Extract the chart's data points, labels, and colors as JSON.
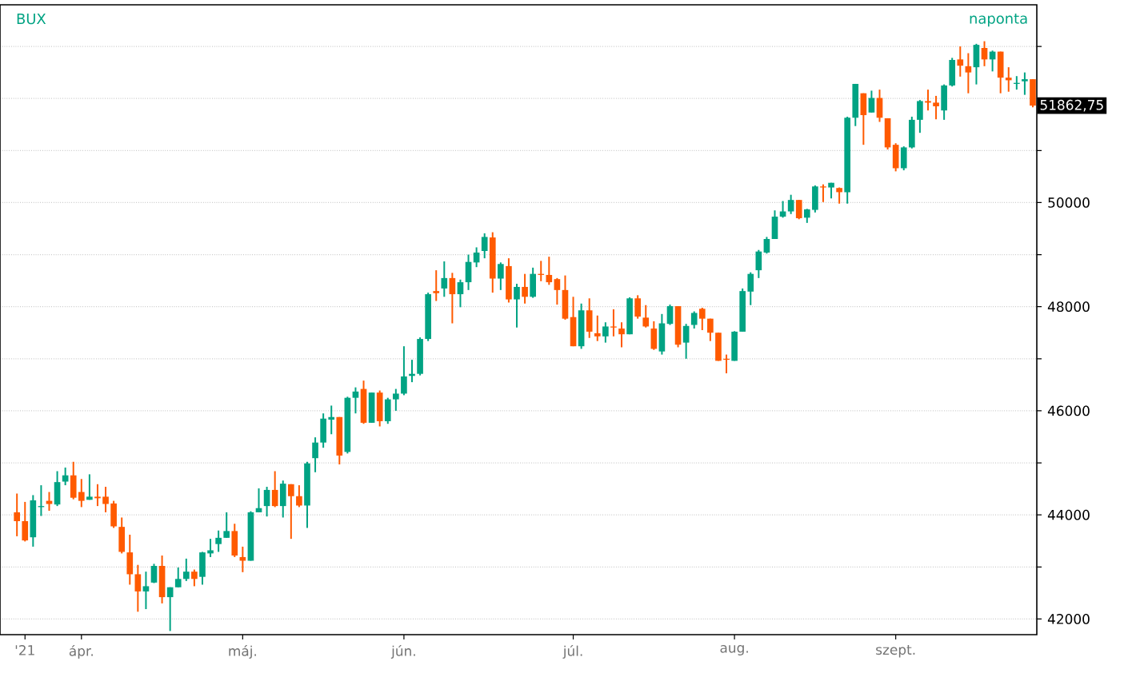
{
  "chart_data": {
    "type": "candlestick",
    "title": "BUX",
    "subtitle": "naponta",
    "categories": [
      null,
      "'21",
      null,
      null,
      null,
      null,
      null,
      null,
      "ápr.",
      null,
      null,
      null,
      null,
      null,
      null,
      null,
      null,
      null,
      null,
      null,
      null,
      null,
      null,
      null,
      null,
      null,
      null,
      null,
      "máj.",
      null,
      null,
      null,
      null,
      null,
      null,
      null,
      null,
      null,
      null,
      null,
      null,
      null,
      null,
      null,
      null,
      null,
      null,
      null,
      "jún.",
      null,
      null,
      null,
      null,
      null,
      null,
      null,
      null,
      null,
      null,
      null,
      null,
      null,
      null,
      null,
      null,
      null,
      null,
      null,
      null,
      "júl.",
      null,
      null,
      null,
      null,
      null,
      null,
      null,
      null,
      null,
      null,
      null,
      null,
      null,
      null,
      null,
      null,
      null,
      null,
      null,
      "aug.",
      null,
      null,
      null,
      null,
      null,
      null,
      null,
      null,
      null,
      null,
      null,
      null,
      null,
      null,
      null,
      null,
      null,
      null,
      null,
      "szept.",
      null,
      null,
      null,
      null,
      null,
      null,
      null,
      null,
      null,
      null,
      null,
      null,
      null,
      null,
      null,
      null,
      null
    ],
    "ohlc": [
      [
        44050,
        44410,
        43590,
        43880
      ],
      [
        43880,
        44250,
        43490,
        43510
      ],
      [
        43570,
        44380,
        43390,
        44280
      ],
      [
        44150,
        44570,
        43980,
        44170
      ],
      [
        44270,
        44440,
        44080,
        44210
      ],
      [
        44200,
        44840,
        44170,
        44630
      ],
      [
        44640,
        44910,
        44570,
        44760
      ],
      [
        44760,
        45020,
        44300,
        44330
      ],
      [
        44440,
        44690,
        44150,
        44270
      ],
      [
        44290,
        44780,
        44290,
        44350
      ],
      [
        44350,
        44590,
        44170,
        44320
      ],
      [
        44350,
        44540,
        44050,
        44210
      ],
      [
        44220,
        44270,
        43750,
        43780
      ],
      [
        43770,
        43950,
        43260,
        43290
      ],
      [
        43280,
        43620,
        42660,
        42860
      ],
      [
        42860,
        43040,
        42140,
        42530
      ],
      [
        42530,
        42910,
        42190,
        42630
      ],
      [
        42700,
        43060,
        42690,
        43020
      ],
      [
        43020,
        43220,
        42300,
        42420
      ],
      [
        42420,
        42610,
        41770,
        42610
      ],
      [
        42610,
        42990,
        42610,
        42770
      ],
      [
        42770,
        43160,
        42730,
        42910
      ],
      [
        42910,
        42950,
        42630,
        42770
      ],
      [
        42810,
        43290,
        42660,
        43280
      ],
      [
        43260,
        43540,
        43190,
        43320
      ],
      [
        43440,
        43700,
        43290,
        43560
      ],
      [
        43560,
        44050,
        43560,
        43690
      ],
      [
        43690,
        43830,
        43190,
        43220
      ],
      [
        43190,
        43390,
        42900,
        43120
      ],
      [
        43120,
        44070,
        43120,
        44050
      ],
      [
        44050,
        44510,
        44050,
        44130
      ],
      [
        44170,
        44540,
        43970,
        44480
      ],
      [
        44480,
        44840,
        44150,
        44170
      ],
      [
        44170,
        44660,
        43950,
        44600
      ],
      [
        44590,
        44590,
        43540,
        44360
      ],
      [
        44360,
        44570,
        44150,
        44180
      ],
      [
        44180,
        45020,
        43750,
        44990
      ],
      [
        45090,
        45490,
        44820,
        45390
      ],
      [
        45390,
        45950,
        45290,
        45850
      ],
      [
        45830,
        46100,
        45550,
        45880
      ],
      [
        45880,
        45880,
        44970,
        45140
      ],
      [
        45210,
        46270,
        45180,
        46250
      ],
      [
        46250,
        46450,
        45950,
        46370
      ],
      [
        46420,
        46580,
        45750,
        45770
      ],
      [
        45770,
        46350,
        45770,
        46350
      ],
      [
        46350,
        46390,
        45700,
        45800
      ],
      [
        45800,
        46250,
        45750,
        46220
      ],
      [
        46220,
        46420,
        46000,
        46330
      ],
      [
        46330,
        47240,
        46300,
        46660
      ],
      [
        46670,
        46980,
        46550,
        46710
      ],
      [
        46710,
        47410,
        46680,
        47380
      ],
      [
        47380,
        48270,
        47340,
        48240
      ],
      [
        48300,
        48700,
        48110,
        48260
      ],
      [
        48350,
        48870,
        48190,
        48550
      ],
      [
        48550,
        48650,
        47680,
        48240
      ],
      [
        48240,
        48520,
        47990,
        48470
      ],
      [
        48470,
        49000,
        48320,
        48860
      ],
      [
        48850,
        49140,
        48760,
        49040
      ],
      [
        49070,
        49410,
        48930,
        49340
      ],
      [
        49330,
        49430,
        48270,
        48540
      ],
      [
        48540,
        48850,
        48320,
        48820
      ],
      [
        48780,
        48930,
        48080,
        48140
      ],
      [
        48140,
        48440,
        47600,
        48380
      ],
      [
        48380,
        48630,
        48060,
        48190
      ],
      [
        48190,
        48750,
        48170,
        48630
      ],
      [
        48630,
        48880,
        48490,
        48610
      ],
      [
        48610,
        48960,
        48420,
        48470
      ],
      [
        48530,
        48550,
        48040,
        48320
      ],
      [
        48320,
        48600,
        47750,
        47770
      ],
      [
        47800,
        48190,
        47240,
        47240
      ],
      [
        47240,
        48060,
        47190,
        47930
      ],
      [
        47930,
        48160,
        47400,
        47520
      ],
      [
        47490,
        47830,
        47340,
        47430
      ],
      [
        47430,
        47700,
        47310,
        47620
      ],
      [
        47620,
        47950,
        47430,
        47600
      ],
      [
        47580,
        47700,
        47220,
        47470
      ],
      [
        47470,
        48180,
        47470,
        48160
      ],
      [
        48160,
        48220,
        47770,
        47810
      ],
      [
        47790,
        48030,
        47600,
        47620
      ],
      [
        47580,
        47720,
        47170,
        47190
      ],
      [
        47140,
        47860,
        47080,
        47680
      ],
      [
        47670,
        48040,
        47650,
        48010
      ],
      [
        48010,
        48010,
        47220,
        47270
      ],
      [
        47310,
        47670,
        47000,
        47630
      ],
      [
        47650,
        47910,
        47580,
        47880
      ],
      [
        47960,
        47980,
        47550,
        47770
      ],
      [
        47770,
        47770,
        47340,
        47500
      ],
      [
        47500,
        47500,
        46960,
        46960
      ],
      [
        47000,
        47080,
        46720,
        46980
      ],
      [
        46960,
        47530,
        46960,
        47520
      ],
      [
        47520,
        48350,
        47520,
        48300
      ],
      [
        48290,
        48660,
        48030,
        48630
      ],
      [
        48700,
        49090,
        48550,
        49060
      ],
      [
        49040,
        49340,
        49020,
        49300
      ],
      [
        49300,
        49850,
        49300,
        49730
      ],
      [
        49730,
        50030,
        49710,
        49830
      ],
      [
        49830,
        50150,
        49780,
        50050
      ],
      [
        50050,
        50050,
        49680,
        49700
      ],
      [
        49710,
        49880,
        49610,
        49870
      ],
      [
        49860,
        50330,
        49810,
        50310
      ],
      [
        50310,
        50350,
        50010,
        50290
      ],
      [
        50290,
        50380,
        50080,
        50380
      ],
      [
        50280,
        50290,
        49980,
        50200
      ],
      [
        50200,
        51650,
        49980,
        51630
      ],
      [
        51630,
        52280,
        51470,
        52280
      ],
      [
        52100,
        52100,
        51110,
        51680
      ],
      [
        51730,
        52150,
        51730,
        52010
      ],
      [
        52010,
        52170,
        51550,
        51630
      ],
      [
        51620,
        51620,
        51020,
        51060
      ],
      [
        51110,
        51140,
        50600,
        50660
      ],
      [
        50660,
        51080,
        50620,
        51060
      ],
      [
        51060,
        51650,
        51040,
        51590
      ],
      [
        51590,
        51970,
        51340,
        51950
      ],
      [
        51950,
        52170,
        51770,
        51920
      ],
      [
        51920,
        52050,
        51600,
        51850
      ],
      [
        51770,
        52270,
        51590,
        52250
      ],
      [
        52250,
        52780,
        52230,
        52740
      ],
      [
        52750,
        53000,
        52420,
        52630
      ],
      [
        52620,
        52870,
        52100,
        52500
      ],
      [
        52600,
        53050,
        52270,
        53030
      ],
      [
        52970,
        53100,
        52620,
        52750
      ],
      [
        52750,
        52920,
        52520,
        52900
      ],
      [
        52900,
        52900,
        52100,
        52400
      ],
      [
        52400,
        52600,
        52130,
        52350
      ],
      [
        52280,
        52430,
        52170,
        52300
      ],
      [
        52330,
        52500,
        52070,
        52370
      ],
      [
        52370,
        52370,
        51830,
        51862.75
      ]
    ],
    "colors": [
      "#ff5a00",
      "#ff5a00",
      "#00a383",
      "#00a383",
      "#ff5a00",
      "#00a383",
      "#00a383",
      "#ff5a00",
      "#ff5a00",
      "#00a383",
      "#ff5a00",
      "#ff5a00",
      "#ff5a00",
      "#ff5a00",
      "#ff5a00",
      "#ff5a00",
      "#00a383",
      "#00a383",
      "#ff5a00",
      "#00a383",
      "#00a383",
      "#00a383",
      "#ff5a00",
      "#00a383",
      "#00a383",
      "#00a383",
      "#00a383",
      "#ff5a00",
      "#ff5a00",
      "#00a383",
      "#00a383",
      "#00a383",
      "#ff5a00",
      "#00a383",
      "#ff5a00",
      "#ff5a00",
      "#00a383",
      "#00a383",
      "#00a383",
      "#00a383",
      "#ff5a00",
      "#00a383",
      "#00a383",
      "#ff5a00",
      "#00a383",
      "#ff5a00",
      "#00a383",
      "#00a383",
      "#00a383",
      "#00a383",
      "#00a383",
      "#00a383",
      "#ff5a00",
      "#00a383",
      "#ff5a00",
      "#00a383",
      "#00a383",
      "#00a383",
      "#00a383",
      "#ff5a00",
      "#00a383",
      "#ff5a00",
      "#00a383",
      "#ff5a00",
      "#00a383",
      "#ff5a00",
      "#ff5a00",
      "#ff5a00",
      "#ff5a00",
      "#ff5a00",
      "#00a383",
      "#ff5a00",
      "#ff5a00",
      "#00a383",
      "#ff5a00",
      "#ff5a00",
      "#00a383",
      "#ff5a00",
      "#ff5a00",
      "#ff5a00",
      "#00a383",
      "#00a383",
      "#ff5a00",
      "#00a383",
      "#00a383",
      "#ff5a00",
      "#ff5a00",
      "#ff5a00",
      "#ff5a00",
      "#00a383",
      "#00a383",
      "#00a383",
      "#00a383",
      "#00a383",
      "#00a383",
      "#00a383",
      "#00a383",
      "#ff5a00",
      "#00a383",
      "#00a383",
      "#ff5a00",
      "#00a383",
      "#ff5a00",
      "#00a383",
      "#00a383",
      "#ff5a00",
      "#00a383",
      "#ff5a00",
      "#ff5a00",
      "#ff5a00",
      "#00a383",
      "#00a383",
      "#00a383",
      "#ff5a00",
      "#ff5a00",
      "#00a383",
      "#00a383",
      "#ff5a00",
      "#ff5a00",
      "#00a383",
      "#ff5a00",
      "#00a383",
      "#ff5a00",
      "#ff5a00",
      "#00a383",
      "#00a383",
      "#ff5a00"
    ],
    "ylim": [
      41700,
      53800
    ],
    "yticks": [
      42000,
      {
        "value": 43000,
        "label": null
      },
      44000,
      {
        "value": 45000,
        "label": null
      },
      46000,
      {
        "value": 47000,
        "label": null
      },
      48000,
      {
        "value": 49000,
        "label": null
      },
      50000,
      {
        "value": 51000,
        "label": null
      },
      {
        "value": 52000,
        "label": null
      },
      {
        "value": 53000,
        "label": null
      }
    ],
    "grid": "y",
    "annotations": [
      "51862,75"
    ]
  }
}
